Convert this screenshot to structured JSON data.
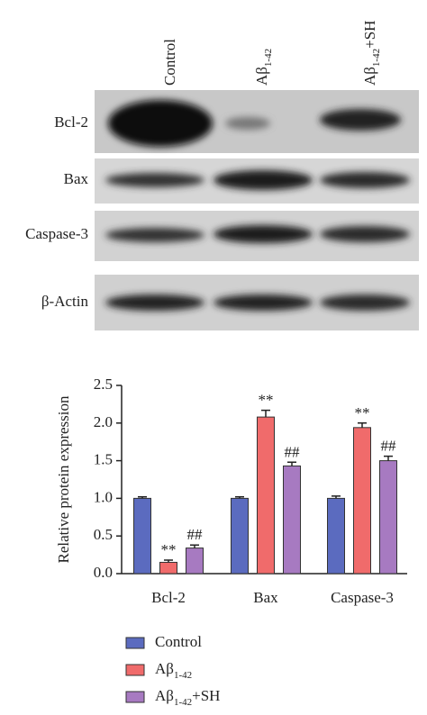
{
  "blot": {
    "lanes": [
      "Control",
      "Aβ1-42",
      "Aβ1-42+SH"
    ],
    "rows": [
      "Bcl-2",
      "Bax",
      "Caspase-3",
      "β-Actin"
    ]
  },
  "chart_data": {
    "type": "bar",
    "ylabel": "Relative protein expression",
    "categories": [
      "Bcl-2",
      "Bax",
      "Caspase-3"
    ],
    "series": [
      {
        "name": "Control",
        "color": "#5b6bbf",
        "values": [
          1.0,
          1.0,
          1.0
        ],
        "errors": [
          0.02,
          0.02,
          0.03
        ]
      },
      {
        "name": "Aβ1-42",
        "color": "#f06b6b",
        "values": [
          0.15,
          2.08,
          1.94
        ],
        "errors": [
          0.03,
          0.09,
          0.06
        ],
        "significance": [
          "**",
          "**",
          "**"
        ]
      },
      {
        "name": "Aβ1-42+SH",
        "color": "#a77ac1",
        "values": [
          0.34,
          1.43,
          1.5
        ],
        "errors": [
          0.04,
          0.05,
          0.06
        ],
        "significance": [
          "##",
          "##",
          "##"
        ]
      }
    ],
    "ylim": [
      0,
      2.5
    ],
    "yticks": [
      {
        "value": 0,
        "label": "0.0"
      },
      0.5,
      {
        "value": 1,
        "label": "1.0"
      },
      1.5,
      {
        "value": 2,
        "label": "2.0"
      },
      2.5
    ],
    "legend": "bottom"
  }
}
